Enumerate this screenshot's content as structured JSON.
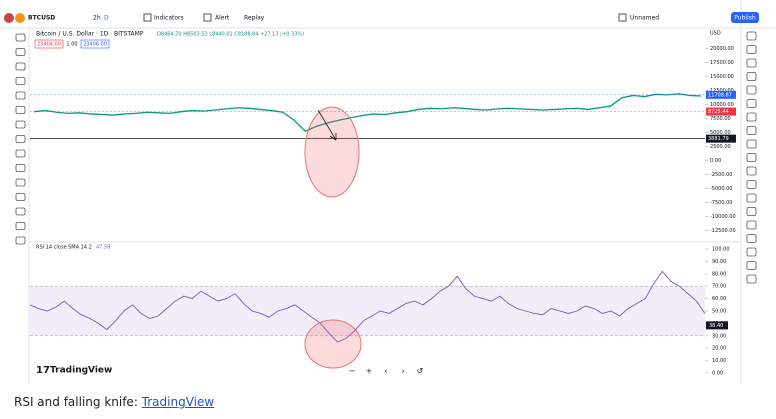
{
  "toolbar": {
    "symbol": "BTCUSD",
    "interval": "2h",
    "interval_mode": "D",
    "indicators": "Indicators",
    "alert": "Alert",
    "replay": "Replay",
    "layout": "Unnamed",
    "publish": "Publish"
  },
  "legend": {
    "title": "Bitcoin / U.S. Dollar · 1D · BITSTAMP",
    "ohlc": "O8464.70 H8503.53 L8440.01 C8188.84 +27.13 (+0.33%)",
    "sell": "23404.00",
    "spread": "1.00",
    "buy": "23406.00"
  },
  "price_chart": {
    "currency": "USD",
    "values": [
      8700,
      8900,
      8600,
      8400,
      8500,
      8300,
      8200,
      8100,
      8300,
      8400,
      8600,
      8500,
      8400,
      8700,
      8900,
      8800,
      9000,
      9200,
      9400,
      9300,
      9100,
      8900,
      8600,
      7200,
      5200,
      6100,
      6700,
      7200,
      7600,
      8000,
      8300,
      8200,
      8500,
      8700,
      9100,
      9300,
      9200,
      9400,
      9300,
      9100,
      9000,
      9200,
      9300,
      9200,
      9100,
      9000,
      9100,
      9200,
      9300,
      9100,
      9400,
      9700,
      11200,
      11600,
      11400,
      11800,
      11700,
      11900,
      11600,
      11500
    ],
    "ylim": [
      -13500,
      21500
    ],
    "yticks": [
      {
        "value": 20000,
        "label": "20000.00"
      },
      {
        "value": 17500,
        "label": "17500.00"
      },
      {
        "value": 15000,
        "label": "15000.00"
      },
      {
        "value": 12500,
        "label": "12500.00"
      },
      {
        "value": 10000,
        "label": "10000.00"
      },
      {
        "value": 7500,
        "label": "7500.00"
      },
      {
        "value": 5000,
        "label": "5000.00"
      },
      {
        "value": 2500,
        "label": "2500.00"
      },
      {
        "value": 0,
        "label": "0.00"
      },
      {
        "value": -2500,
        "label": "-2500.00"
      },
      {
        "value": -5000,
        "label": "-5000.00"
      },
      {
        "value": -7500,
        "label": "-7500.00"
      },
      {
        "value": -10000,
        "label": "-10000.00"
      },
      {
        "value": -12500,
        "label": "-12500.00"
      }
    ],
    "badges": [
      {
        "value": 11708.87,
        "label": "11708.87",
        "color": "#2962ff"
      },
      {
        "value": 8725.44,
        "label": "8725.44",
        "color": "#f23645"
      },
      {
        "value": 3881.79,
        "label": "3881.79",
        "color": "#131722"
      }
    ]
  },
  "rsi_chart": {
    "legend": "RSI 14 close SMA 14 2",
    "current": "47.58",
    "values": [
      55,
      52,
      50,
      53,
      58,
      52,
      47,
      44,
      40,
      35,
      42,
      50,
      55,
      48,
      44,
      46,
      52,
      58,
      62,
      60,
      66,
      62,
      58,
      60,
      64,
      56,
      50,
      48,
      45,
      50,
      52,
      55,
      50,
      45,
      40,
      32,
      25,
      28,
      34,
      42,
      46,
      50,
      48,
      52,
      56,
      58,
      55,
      60,
      66,
      70,
      78,
      68,
      62,
      60,
      58,
      62,
      56,
      52,
      50,
      48,
      47,
      52,
      50,
      48,
      50,
      54,
      52,
      48,
      50,
      46,
      52,
      56,
      60,
      72,
      82,
      74,
      70,
      64,
      58,
      48
    ],
    "ylim": [
      0,
      100
    ],
    "band": [
      30,
      70
    ],
    "yticks": [
      {
        "value": 100,
        "label": "100.00"
      },
      {
        "value": 90,
        "label": "90.00"
      },
      {
        "value": 80,
        "label": "80.00"
      },
      {
        "value": 70,
        "label": "70.00"
      },
      {
        "value": 60,
        "label": "60.00"
      },
      {
        "value": 50,
        "label": "50.00"
      },
      {
        "value": 40,
        "label": "40.00"
      },
      {
        "value": 30,
        "label": "30.00"
      },
      {
        "value": 20,
        "label": "20.00"
      },
      {
        "value": 10,
        "label": "10.00"
      },
      {
        "value": 0,
        "label": "0.00"
      }
    ],
    "badge": {
      "value": 38.4,
      "label": "38.40"
    }
  },
  "logo": "TradingView",
  "nav": [
    "−",
    "+",
    "‹",
    "›",
    "↺"
  ],
  "caption": {
    "text": "RSI and falling knife: ",
    "link": "TradingView"
  }
}
